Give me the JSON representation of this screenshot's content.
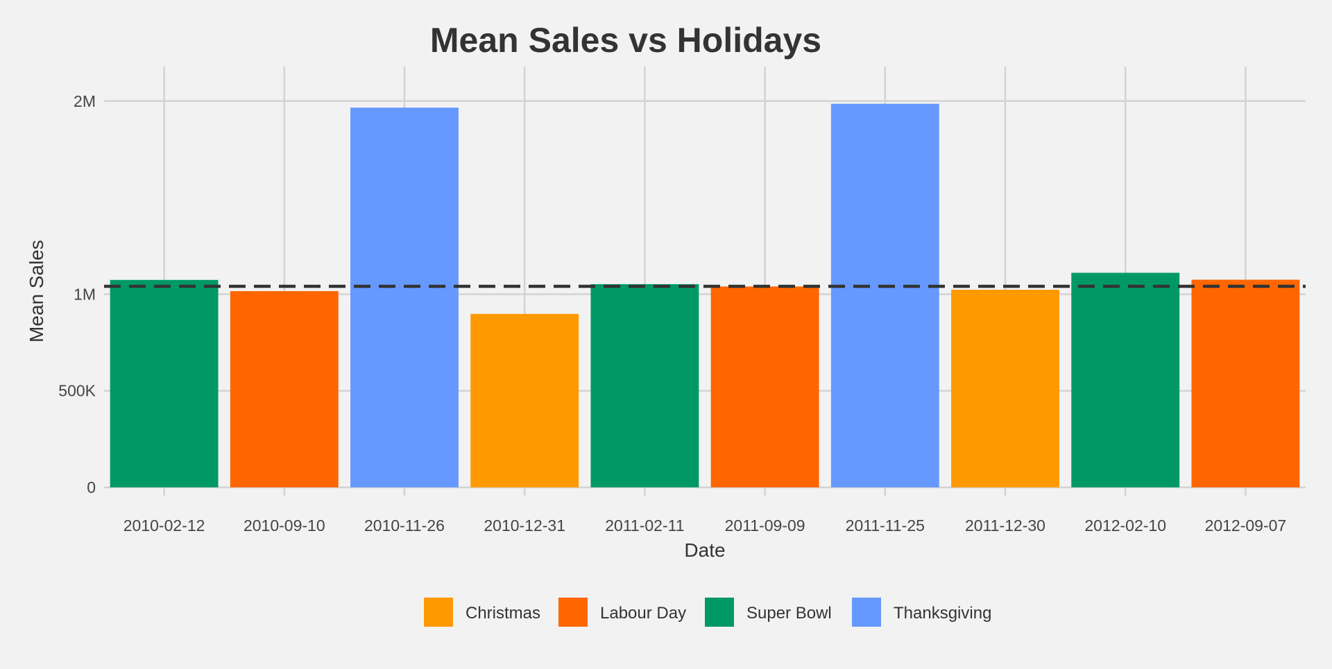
{
  "chart_data": {
    "type": "bar",
    "title": "Mean Sales vs Holidays",
    "xlabel": "Date",
    "ylabel": "Mean Sales",
    "ylim": [
      0,
      2150000
    ],
    "yticks": [
      {
        "value": 0,
        "label": "0"
      },
      {
        "value": 500000,
        "label": "500K"
      },
      {
        "value": 1000000,
        "label": "1M"
      },
      {
        "value": 2000000,
        "label": "2M"
      }
    ],
    "categories": [
      "2010-02-12",
      "2010-09-10",
      "2010-11-26",
      "2010-12-31",
      "2011-02-11",
      "2011-09-09",
      "2011-11-25",
      "2011-12-30",
      "2012-02-10",
      "2012-09-07"
    ],
    "values": [
      1074000,
      1016000,
      1966000,
      898000,
      1052000,
      1040000,
      1986000,
      1023000,
      1111000,
      1075000
    ],
    "holiday": [
      "Super Bowl",
      "Labour Day",
      "Thanksgiving",
      "Christmas",
      "Super Bowl",
      "Labour Day",
      "Thanksgiving",
      "Christmas",
      "Super Bowl",
      "Labour Day"
    ],
    "reference_line": {
      "value": 1041000,
      "style": "dashed",
      "color": "#333333"
    },
    "legend": {
      "placement": "bottom",
      "entries": [
        {
          "name": "Christmas",
          "color": "#ff9900"
        },
        {
          "name": "Labour Day",
          "color": "#ff6600"
        },
        {
          "name": "Super Bowl",
          "color": "#009966"
        },
        {
          "name": "Thanksgiving",
          "color": "#6699ff"
        }
      ]
    },
    "grid": true,
    "background": "#f2f2f2",
    "grid_color": "#d3d3d3",
    "text_color": "#333333"
  }
}
